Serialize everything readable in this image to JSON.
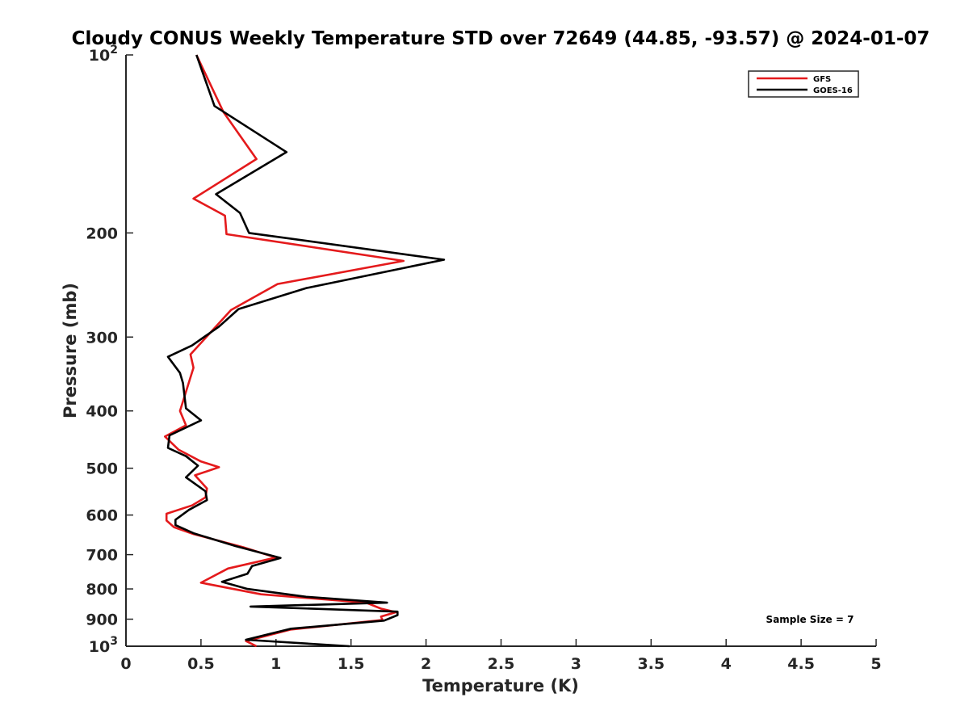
{
  "chart_data": {
    "type": "line",
    "title": "Cloudy CONUS Weekly Temperature STD over 72649 (44.85, -93.57) @ 2024-01-07",
    "xlabel": "Temperature (K)",
    "ylabel": "Pressure (mb)",
    "xlim": [
      0,
      5
    ],
    "ylim": [
      100,
      1000
    ],
    "yscale": "log",
    "y_reversed": true,
    "xticks": [
      "0",
      "0.5",
      "1",
      "1.5",
      "2",
      "2.5",
      "3",
      "3.5",
      "4",
      "4.5",
      "5"
    ],
    "xtick_values": [
      0,
      0.5,
      1,
      1.5,
      2,
      2.5,
      3,
      3.5,
      4,
      4.5,
      5
    ],
    "yticks": [
      {
        "label": "10",
        "sup": "2",
        "value": 100
      },
      {
        "label": "200",
        "sup": "",
        "value": 200
      },
      {
        "label": "300",
        "sup": "",
        "value": 300
      },
      {
        "label": "400",
        "sup": "",
        "value": 400
      },
      {
        "label": "500",
        "sup": "",
        "value": 500
      },
      {
        "label": "600",
        "sup": "",
        "value": 600
      },
      {
        "label": "700",
        "sup": "",
        "value": 700
      },
      {
        "label": "800",
        "sup": "",
        "value": 800
      },
      {
        "label": "900",
        "sup": "",
        "value": 900
      },
      {
        "label": "10",
        "sup": "3",
        "value": 1000
      }
    ],
    "grid": false,
    "legend_position": "top-right",
    "annotation": "Sample Size = 7",
    "series": [
      {
        "name": "GFS",
        "color": "#e41a1c",
        "points": [
          [
            0.47,
            100
          ],
          [
            0.65,
            125
          ],
          [
            0.87,
            150
          ],
          [
            0.45,
            175
          ],
          [
            0.66,
            187
          ],
          [
            0.67,
            201
          ],
          [
            1.85,
            223
          ],
          [
            1.01,
            244
          ],
          [
            0.7,
            270
          ],
          [
            0.43,
            321
          ],
          [
            0.45,
            338
          ],
          [
            0.36,
            400
          ],
          [
            0.4,
            423
          ],
          [
            0.26,
            442
          ],
          [
            0.35,
            465
          ],
          [
            0.5,
            487
          ],
          [
            0.62,
            498
          ],
          [
            0.46,
            514
          ],
          [
            0.54,
            541
          ],
          [
            0.53,
            560
          ],
          [
            0.44,
            578
          ],
          [
            0.27,
            597
          ],
          [
            0.27,
            613
          ],
          [
            0.32,
            629
          ],
          [
            0.45,
            646
          ],
          [
            0.78,
            680
          ],
          [
            1.0,
            708
          ],
          [
            0.68,
            739
          ],
          [
            0.5,
            781
          ],
          [
            0.9,
            817
          ],
          [
            1.6,
            844
          ],
          [
            1.7,
            864
          ],
          [
            1.8,
            876
          ],
          [
            1.7,
            891
          ],
          [
            1.71,
            903
          ],
          [
            1.1,
            937
          ],
          [
            0.8,
            980
          ],
          [
            0.87,
            1000
          ]
        ]
      },
      {
        "name": "GOES-16",
        "color": "#000000",
        "points": [
          [
            0.47,
            100
          ],
          [
            0.59,
            122
          ],
          [
            1.07,
            146
          ],
          [
            0.6,
            172
          ],
          [
            0.76,
            185
          ],
          [
            0.82,
            200
          ],
          [
            2.12,
            222
          ],
          [
            1.2,
            248
          ],
          [
            0.75,
            269
          ],
          [
            0.62,
            288
          ],
          [
            0.44,
            310
          ],
          [
            0.28,
            324
          ],
          [
            0.36,
            345
          ],
          [
            0.38,
            359
          ],
          [
            0.4,
            396
          ],
          [
            0.5,
            415
          ],
          [
            0.29,
            440
          ],
          [
            0.28,
            462
          ],
          [
            0.4,
            477
          ],
          [
            0.48,
            495
          ],
          [
            0.4,
            518
          ],
          [
            0.53,
            547
          ],
          [
            0.54,
            566
          ],
          [
            0.42,
            588
          ],
          [
            0.33,
            611
          ],
          [
            0.33,
            624
          ],
          [
            0.45,
            644
          ],
          [
            0.73,
            677
          ],
          [
            1.03,
            709
          ],
          [
            0.84,
            732
          ],
          [
            0.81,
            754
          ],
          [
            0.64,
            778
          ],
          [
            0.81,
            800
          ],
          [
            1.2,
            825
          ],
          [
            1.74,
            844
          ],
          [
            0.83,
            857
          ],
          [
            1.81,
            874
          ],
          [
            1.81,
            886
          ],
          [
            1.72,
            905
          ],
          [
            1.1,
            934
          ],
          [
            0.8,
            975
          ],
          [
            1.49,
            1000
          ]
        ]
      }
    ]
  }
}
